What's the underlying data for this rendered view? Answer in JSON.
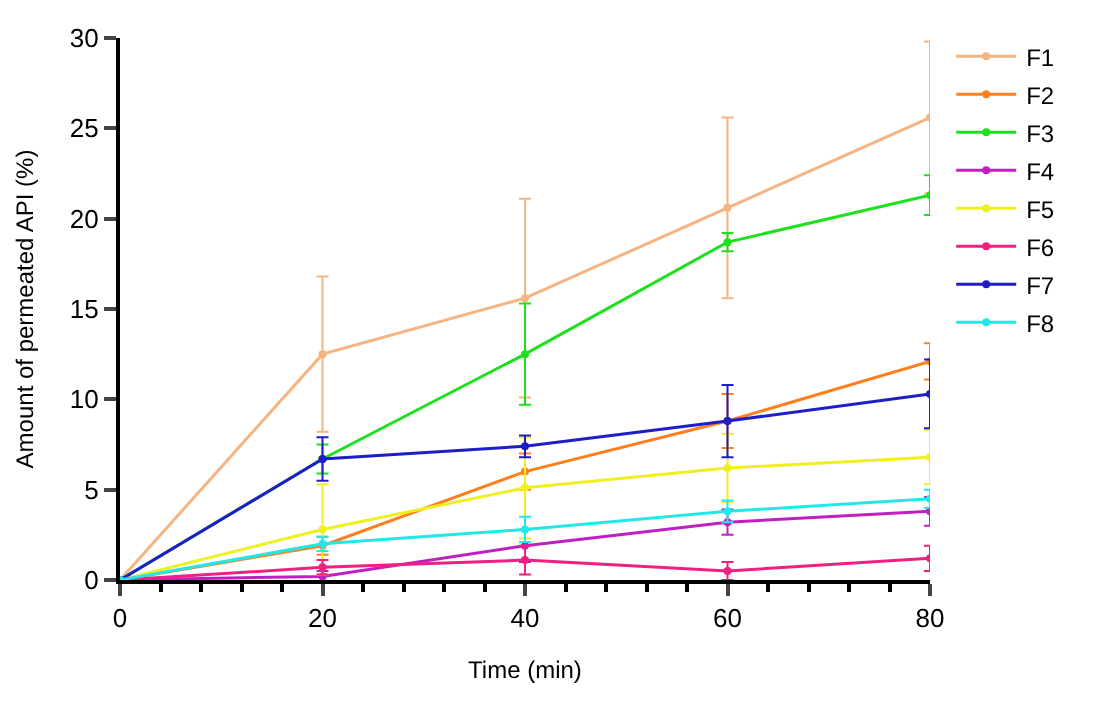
{
  "chart_data": {
    "type": "line",
    "xlabel": "Time (min)",
    "ylabel": "Amount of permeated API (%)",
    "x": [
      0,
      20,
      40,
      60,
      80
    ],
    "xlim": [
      0,
      80
    ],
    "xticks": [
      0,
      20,
      40,
      60,
      80
    ],
    "ylim": [
      0,
      30
    ],
    "yticks": [
      0,
      5,
      10,
      15,
      20,
      25,
      30
    ],
    "legend": "top right",
    "marker": "circle",
    "line_style": "solid",
    "series": [
      {
        "name": "F1",
        "color": "#f5b482",
        "values": [
          0,
          12.5,
          15.6,
          20.6,
          25.6
        ],
        "errors": [
          null,
          4.3,
          5.5,
          5.0,
          4.2
        ]
      },
      {
        "name": "F2",
        "color": "#ff7f1e",
        "values": [
          0,
          1.9,
          6.0,
          8.8,
          12.1
        ],
        "errors": [
          null,
          0.5,
          1.0,
          1.5,
          1.0
        ]
      },
      {
        "name": "F3",
        "color": "#1fe01f",
        "values": [
          0,
          6.7,
          12.5,
          18.7,
          21.3
        ],
        "errors": [
          null,
          0.8,
          2.8,
          0.5,
          1.1
        ]
      },
      {
        "name": "F4",
        "color": "#c020c0",
        "values": [
          0,
          0.2,
          1.9,
          3.2,
          3.8
        ],
        "errors": [
          null,
          0.3,
          0.9,
          0.7,
          0.8
        ]
      },
      {
        "name": "F5",
        "color": "#f0f020",
        "values": [
          0,
          2.8,
          5.1,
          6.2,
          6.8
        ],
        "errors": [
          null,
          2.5,
          2.8,
          1.9,
          1.5
        ]
      },
      {
        "name": "F6",
        "color": "#f02080",
        "values": [
          0,
          0.7,
          1.1,
          0.5,
          1.2
        ],
        "errors": [
          null,
          0.4,
          0.8,
          0.5,
          0.7
        ]
      },
      {
        "name": "F7",
        "color": "#1e1ec8",
        "values": [
          0,
          6.7,
          7.4,
          8.8,
          10.3
        ],
        "errors": [
          null,
          1.2,
          0.6,
          2.0,
          1.9
        ]
      },
      {
        "name": "F8",
        "color": "#20e8e8",
        "values": [
          0,
          2.0,
          2.8,
          3.8,
          4.5
        ],
        "errors": [
          null,
          0.4,
          0.7,
          0.6,
          0.5
        ]
      }
    ]
  }
}
